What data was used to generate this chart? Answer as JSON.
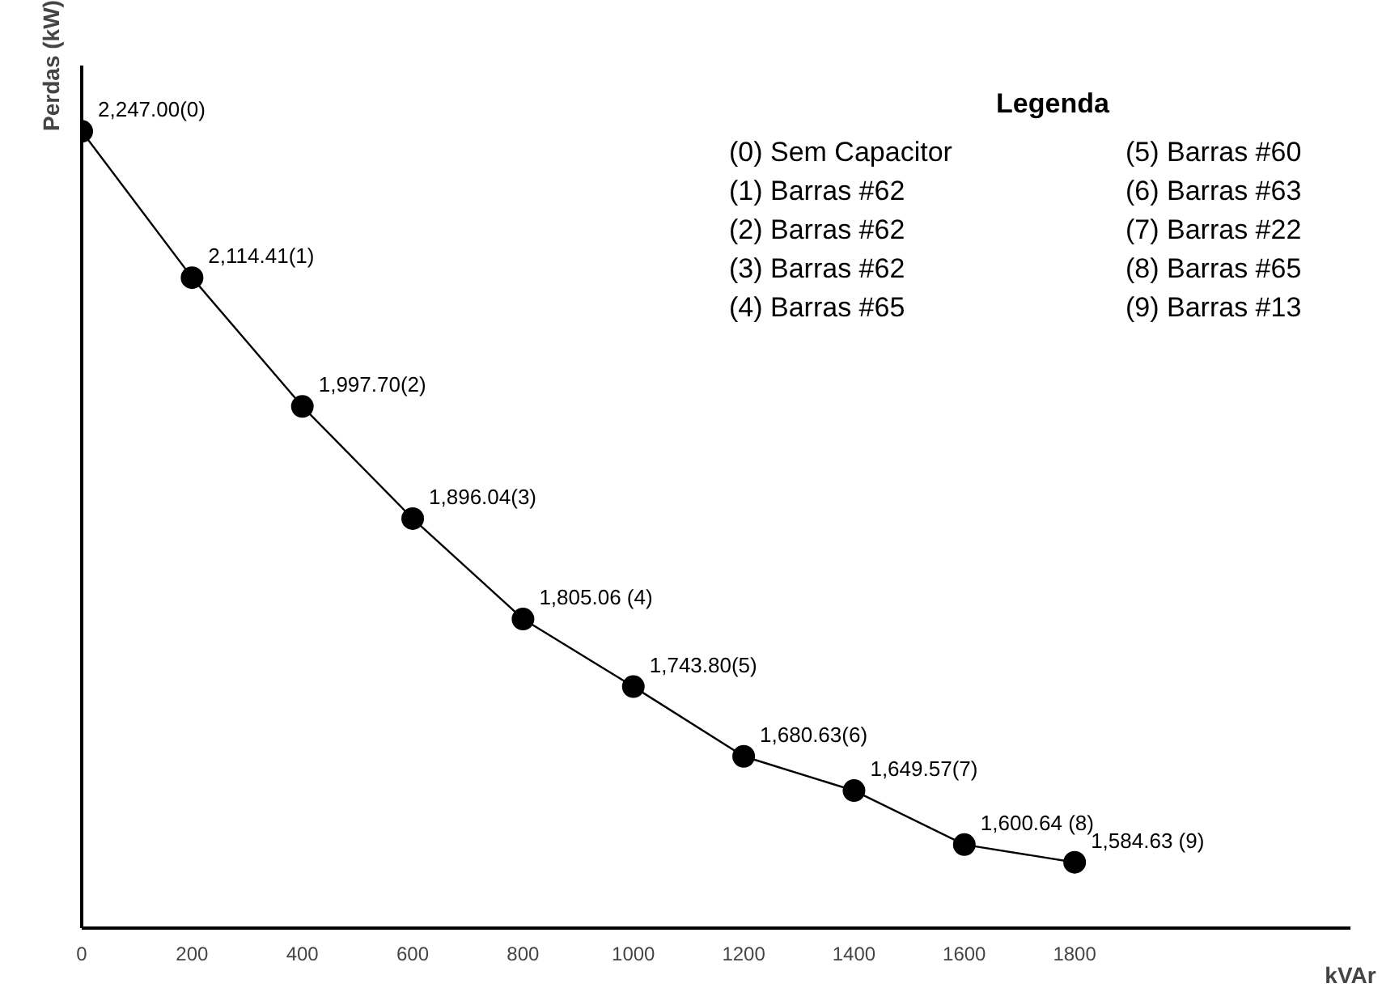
{
  "chart_data": {
    "type": "line",
    "xlabel": "kVAr",
    "ylabel": "Perdas (kW)",
    "x": [
      0,
      200,
      400,
      600,
      800,
      1000,
      1200,
      1400,
      1600,
      1800
    ],
    "series": [
      {
        "color": "#000000",
        "values": [
          2247.0,
          2114.41,
          1997.7,
          1896.04,
          1805.06,
          1743.8,
          1680.63,
          1649.57,
          1600.64,
          1584.63
        ],
        "value_labels": [
          "2,247.00(0)",
          "2,114.41(1)",
          "1,997.70(2)",
          "1,896.04(3)",
          "1,805.06 (4)",
          "1,743.80(5)",
          "1,680.63(6)",
          "1,649.57(7)",
          "1,600.64 (8)",
          "1,584.63 (9)"
        ]
      }
    ],
    "xlim": [
      0,
      2300
    ],
    "xticks": [
      0,
      200,
      400,
      600,
      800,
      1000,
      1200,
      1400,
      1600,
      1800
    ],
    "tick_labels": "x",
    "grid": false,
    "marker": "circle",
    "line_style": "solid",
    "annotations": [
      "Legenda",
      "(0) Sem Capacitor",
      "(1) Barras #62",
      "(2) Barras #62",
      "(3) Barras #62",
      "(4) Barras #65",
      "(5) Barras #60",
      "(6) Barras #63",
      "(7) Barras #22",
      "(8) Barras #65",
      "(9) Barras #13"
    ]
  }
}
